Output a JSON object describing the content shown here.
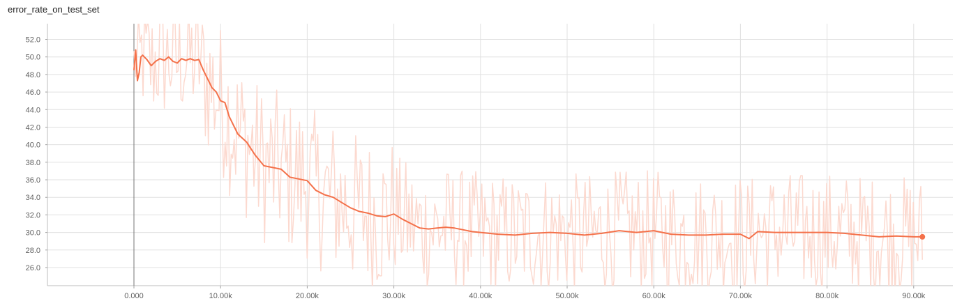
{
  "chart_data": {
    "type": "line",
    "title": "error_rate_on_test_set",
    "xlabel": "",
    "ylabel": "",
    "xlim": [
      -10000,
      95000
    ],
    "ylim": [
      24.2,
      53.5
    ],
    "grid": true,
    "y_ticks": [
      {
        "value": 26.0,
        "label": "26.0"
      },
      {
        "value": 28.0,
        "label": "28.0"
      },
      {
        "value": 30.0,
        "label": "30.0"
      },
      {
        "value": 32.0,
        "label": "32.0"
      },
      {
        "value": 34.0,
        "label": "34.0"
      },
      {
        "value": 36.0,
        "label": "36.0"
      },
      {
        "value": 38.0,
        "label": "38.0"
      },
      {
        "value": 40.0,
        "label": "40.0"
      },
      {
        "value": 42.0,
        "label": "42.0"
      },
      {
        "value": 44.0,
        "label": "44.0"
      },
      {
        "value": 46.0,
        "label": "46.0"
      },
      {
        "value": 48.0,
        "label": "48.0"
      },
      {
        "value": 50.0,
        "label": "50.0"
      },
      {
        "value": 52.0,
        "label": "52.0"
      }
    ],
    "x_ticks": [
      {
        "value": 0,
        "label": "0.000"
      },
      {
        "value": 10000,
        "label": "10.00k"
      },
      {
        "value": 20000,
        "label": "20.00k"
      },
      {
        "value": 30000,
        "label": "30.00k"
      },
      {
        "value": 40000,
        "label": "40.00k"
      },
      {
        "value": 50000,
        "label": "50.00k"
      },
      {
        "value": 60000,
        "label": "60.00k"
      },
      {
        "value": 70000,
        "label": "70.00k"
      },
      {
        "value": 80000,
        "label": "80.00k"
      },
      {
        "value": 90000,
        "label": "90.00k"
      }
    ],
    "series": [
      {
        "role": "smoothed",
        "color": "#f4714a",
        "x": [
          0,
          200,
          400,
          600,
          800,
          1000,
          1500,
          2000,
          2500,
          3000,
          3500,
          4000,
          4500,
          5000,
          5500,
          6000,
          6500,
          7000,
          7500,
          8000,
          8500,
          9000,
          9500,
          10000,
          10500,
          11000,
          12000,
          13000,
          14000,
          15000,
          16000,
          17000,
          18000,
          19000,
          20000,
          21000,
          22000,
          23000,
          24000,
          25000,
          26000,
          27000,
          28000,
          29000,
          30000,
          31000,
          32000,
          33000,
          34000,
          35000,
          36000,
          37000,
          38000,
          39000,
          40000,
          42000,
          44000,
          46000,
          48000,
          50000,
          52000,
          54000,
          56000,
          58000,
          60000,
          62000,
          64000,
          66000,
          68000,
          70000,
          71000,
          72000,
          74000,
          76000,
          78000,
          80000,
          82000,
          84000,
          86000,
          88000,
          90000,
          91000
        ],
        "y": [
          48.5,
          50.8,
          47.3,
          48.2,
          50.0,
          50.2,
          49.7,
          49.0,
          49.5,
          49.8,
          49.6,
          50.0,
          49.5,
          49.3,
          49.8,
          49.6,
          49.8,
          49.6,
          49.7,
          48.5,
          47.5,
          46.5,
          46.0,
          45.0,
          44.8,
          43.2,
          41.2,
          40.3,
          38.8,
          37.6,
          37.4,
          37.2,
          36.3,
          36.1,
          35.9,
          34.8,
          34.3,
          34.0,
          33.4,
          32.8,
          32.4,
          32.2,
          31.9,
          31.8,
          32.1,
          31.5,
          31.0,
          30.5,
          30.4,
          30.5,
          30.6,
          30.5,
          30.3,
          30.1,
          30.0,
          29.8,
          29.7,
          29.9,
          30.0,
          29.9,
          29.7,
          29.9,
          30.2,
          30.0,
          30.2,
          29.8,
          29.7,
          29.7,
          29.8,
          29.8,
          29.3,
          30.1,
          30.0,
          30.0,
          30.0,
          30.0,
          29.9,
          29.7,
          29.5,
          29.6,
          29.5,
          29.5
        ]
      },
      {
        "role": "raw",
        "color": "#fcd9cf",
        "x_start": 0,
        "x_end": 91000,
        "count": 520,
        "values_note": "raw noisy values"
      }
    ]
  }
}
